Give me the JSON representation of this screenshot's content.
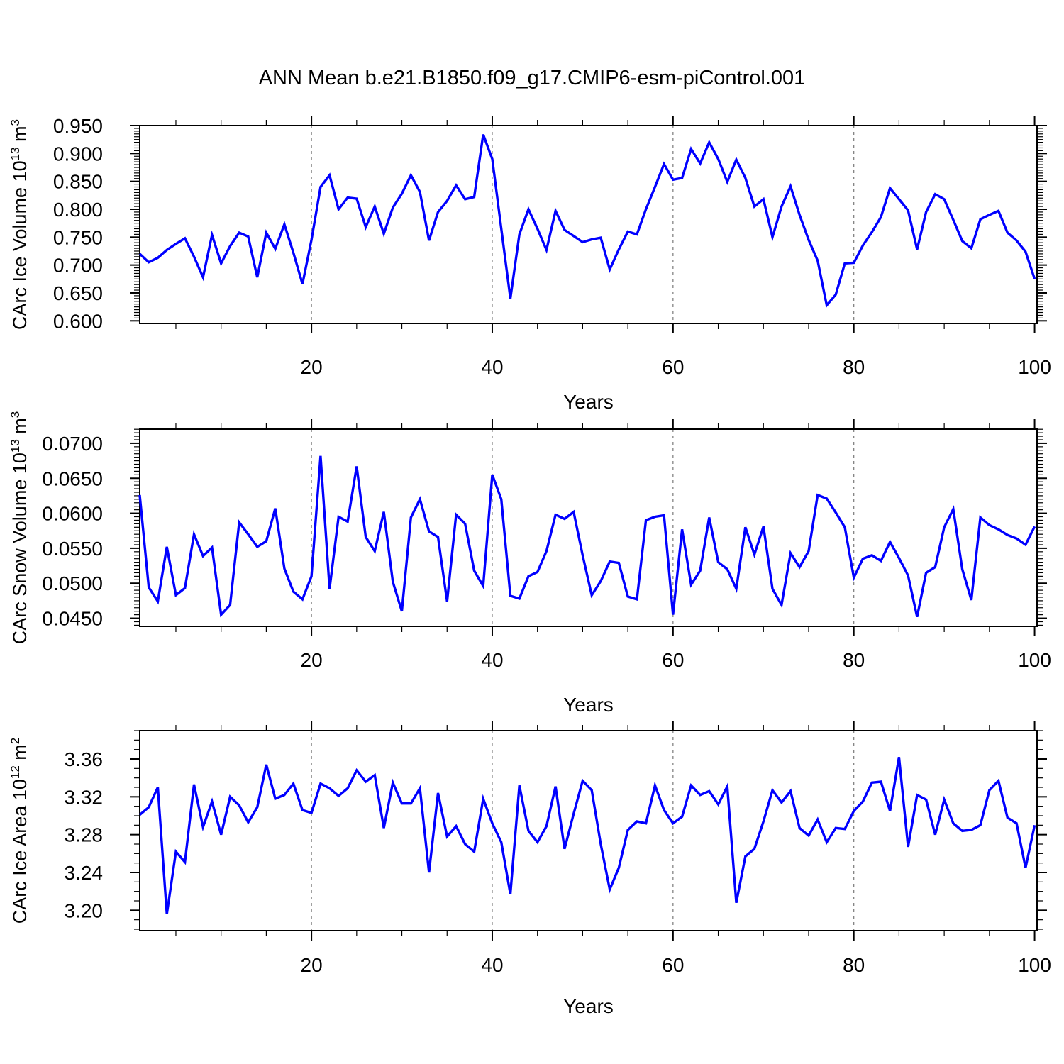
{
  "page": {
    "title": "ANN Mean b.e21.B1850.f09_g17.CMIP6-esm-piControl.001",
    "background_color": "#ffffff",
    "line_color": "#0000ff",
    "grid_color": "#7a7a7a"
  },
  "chart_data": {
    "type": "line",
    "title": "ANN Mean b.e21.B1850.f09_g17.CMIP6-esm-piControl.001",
    "grid": "dashed vertical lines at x = 20, 40, 60, 80",
    "legend_position": "none",
    "x": {
      "label": "Years",
      "start": 1,
      "end": 100,
      "step": 1,
      "axis_end": 100.27,
      "ticks": [
        20,
        40,
        60,
        80,
        100
      ],
      "tick_labels": [
        "20",
        "40",
        "60",
        "80",
        "100"
      ],
      "minor_step": 5,
      "gridlines": [
        20,
        40,
        60,
        80
      ]
    },
    "panels": [
      {
        "name": "carc-ice-volume",
        "ylabel": "CArc Ice Volume 10^13 m^3",
        "ylabel_parts": [
          {
            "text": "CArc Ice Volume 10"
          },
          {
            "text": "13",
            "sup": true
          },
          {
            "text": " m"
          },
          {
            "text": "3",
            "sup": true
          }
        ],
        "xlabel": "Years",
        "ylim": [
          0.5953,
          0.95
        ],
        "yticks": [
          0.6,
          0.65,
          0.7,
          0.75,
          0.8,
          0.85,
          0.9,
          0.95
        ],
        "ytick_labels": [
          "0.600",
          "0.650",
          "0.700",
          "0.750",
          "0.800",
          "0.850",
          "0.900",
          "0.950"
        ],
        "y_minor_step": 0.005,
        "values": [
          0.72,
          0.705,
          0.713,
          0.727,
          0.738,
          0.748,
          0.715,
          0.678,
          0.754,
          0.703,
          0.734,
          0.758,
          0.751,
          0.678,
          0.758,
          0.729,
          0.773,
          0.722,
          0.666,
          0.745,
          0.84,
          0.861,
          0.8,
          0.821,
          0.819,
          0.768,
          0.805,
          0.756,
          0.803,
          0.828,
          0.861,
          0.831,
          0.744,
          0.795,
          0.815,
          0.843,
          0.818,
          0.822,
          0.934,
          0.89,
          0.765,
          0.64,
          0.755,
          0.8,
          0.765,
          0.727,
          0.797,
          0.763,
          0.752,
          0.741,
          0.746,
          0.749,
          0.692,
          0.728,
          0.76,
          0.755,
          0.8,
          0.84,
          0.881,
          0.853,
          0.856,
          0.908,
          0.882,
          0.92,
          0.89,
          0.849,
          0.889,
          0.856,
          0.805,
          0.818,
          0.75,
          0.805,
          0.841,
          0.79,
          0.745,
          0.708,
          0.628,
          0.647,
          0.703,
          0.704,
          0.735,
          0.759,
          0.786,
          0.838,
          0.818,
          0.798,
          0.728,
          0.795,
          0.827,
          0.818,
          0.781,
          0.743,
          0.73,
          0.782,
          0.79,
          0.797,
          0.758,
          0.744,
          0.724,
          0.675
        ]
      },
      {
        "name": "carc-snow-volume",
        "ylabel": "CArc Snow Volume 10^13 m^3",
        "ylabel_parts": [
          {
            "text": "CArc Snow Volume 10"
          },
          {
            "text": "13",
            "sup": true
          },
          {
            "text": " m"
          },
          {
            "text": "3",
            "sup": true
          }
        ],
        "xlabel": "Years",
        "ylim": [
          0.04384,
          0.07202
        ],
        "yticks": [
          0.045,
          0.05,
          0.055,
          0.06,
          0.065,
          0.07
        ],
        "ytick_labels": [
          "0.0450",
          "0.0500",
          "0.0550",
          "0.0600",
          "0.0650",
          "0.0700"
        ],
        "y_minor_step": 0.0005,
        "values": [
          0.0626,
          0.0494,
          0.0474,
          0.0552,
          0.0483,
          0.0493,
          0.057,
          0.0539,
          0.0551,
          0.0455,
          0.0469,
          0.0587,
          0.057,
          0.0552,
          0.056,
          0.0607,
          0.0521,
          0.0488,
          0.0477,
          0.051,
          0.0682,
          0.0492,
          0.0595,
          0.0588,
          0.0667,
          0.0566,
          0.0546,
          0.0602,
          0.0502,
          0.046,
          0.0594,
          0.062,
          0.0574,
          0.0566,
          0.0474,
          0.0598,
          0.0585,
          0.0518,
          0.0496,
          0.0655,
          0.062,
          0.0482,
          0.0478,
          0.051,
          0.0516,
          0.0546,
          0.0598,
          0.0592,
          0.0602,
          0.054,
          0.0483,
          0.0503,
          0.0531,
          0.0529,
          0.0481,
          0.0477,
          0.059,
          0.0595,
          0.0597,
          0.0455,
          0.0577,
          0.0498,
          0.0518,
          0.0594,
          0.053,
          0.052,
          0.0492,
          0.058,
          0.0541,
          0.0581,
          0.0492,
          0.0469,
          0.0543,
          0.0523,
          0.0546,
          0.0626,
          0.0621,
          0.0601,
          0.058,
          0.0508,
          0.0535,
          0.054,
          0.0532,
          0.0559,
          0.0536,
          0.0511,
          0.0452,
          0.0515,
          0.0523,
          0.058,
          0.0606,
          0.052,
          0.0476,
          0.0594,
          0.0583,
          0.0577,
          0.0569,
          0.0564,
          0.0555,
          0.0581
        ]
      },
      {
        "name": "carc-ice-area",
        "ylabel": "CArc Ice Area 10^12 m^2",
        "ylabel_parts": [
          {
            "text": "CArc Ice Area 10"
          },
          {
            "text": "12",
            "sup": true
          },
          {
            "text": " m"
          },
          {
            "text": "2",
            "sup": true
          }
        ],
        "xlabel": "Years",
        "ylim": [
          3.1785,
          3.39
        ],
        "yticks": [
          3.2,
          3.24,
          3.28,
          3.32,
          3.36
        ],
        "ytick_labels": [
          "3.20",
          "3.24",
          "3.28",
          "3.32",
          "3.36"
        ],
        "y_minor_step": 0.01,
        "values": [
          3.301,
          3.309,
          3.33,
          3.196,
          3.262,
          3.251,
          3.333,
          3.288,
          3.315,
          3.28,
          3.32,
          3.311,
          3.293,
          3.309,
          3.354,
          3.318,
          3.322,
          3.334,
          3.306,
          3.303,
          3.334,
          3.329,
          3.321,
          3.329,
          3.348,
          3.336,
          3.343,
          3.287,
          3.335,
          3.313,
          3.313,
          3.329,
          3.24,
          3.324,
          3.278,
          3.289,
          3.27,
          3.262,
          3.318,
          3.292,
          3.272,
          3.217,
          3.332,
          3.284,
          3.272,
          3.289,
          3.331,
          3.265,
          3.302,
          3.337,
          3.327,
          3.27,
          3.222,
          3.245,
          3.285,
          3.294,
          3.292,
          3.332,
          3.306,
          3.292,
          3.299,
          3.332,
          3.322,
          3.326,
          3.312,
          3.331,
          3.208,
          3.257,
          3.265,
          3.294,
          3.327,
          3.314,
          3.326,
          3.287,
          3.279,
          3.296,
          3.272,
          3.287,
          3.286,
          3.305,
          3.315,
          3.335,
          3.336,
          3.305,
          3.362,
          3.267,
          3.322,
          3.317,
          3.28,
          3.317,
          3.292,
          3.284,
          3.285,
          3.29,
          3.327,
          3.337,
          3.298,
          3.292,
          3.245,
          3.29
        ]
      }
    ]
  }
}
